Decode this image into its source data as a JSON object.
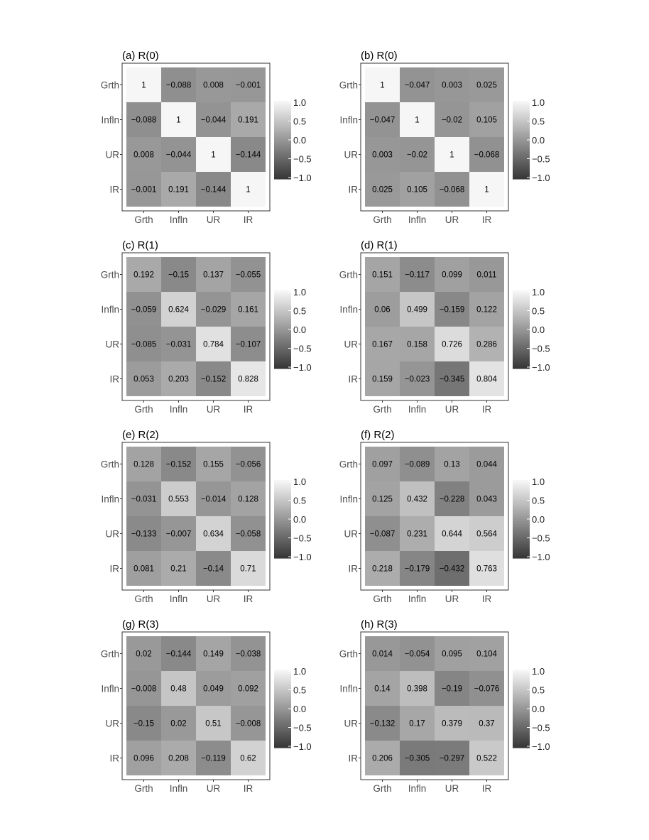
{
  "chart_data": [
    {
      "type": "heatmap",
      "panel_label": "(a) R(0)",
      "x_labels": [
        "Grth",
        "Infln",
        "UR",
        "IR"
      ],
      "y_labels": [
        "Grth",
        "Infln",
        "UR",
        "IR"
      ],
      "values": [
        [
          1,
          -0.088,
          0.008,
          -0.001
        ],
        [
          -0.088,
          1,
          -0.044,
          0.191
        ],
        [
          0.008,
          -0.044,
          1,
          -0.144
        ],
        [
          -0.001,
          0.191,
          -0.144,
          1
        ]
      ],
      "color_range": [
        -1,
        1
      ],
      "legend_ticks": [
        "1.0",
        "0.5",
        "0.0",
        "−0.5",
        "−1.0"
      ]
    },
    {
      "type": "heatmap",
      "panel_label": "(b) R(0)",
      "x_labels": [
        "Grth",
        "Infln",
        "UR",
        "IR"
      ],
      "y_labels": [
        "Grth",
        "Infln",
        "UR",
        "IR"
      ],
      "values": [
        [
          1,
          -0.047,
          0.003,
          0.025
        ],
        [
          -0.047,
          1,
          -0.02,
          0.105
        ],
        [
          0.003,
          -0.02,
          1,
          -0.068
        ],
        [
          0.025,
          0.105,
          -0.068,
          1
        ]
      ],
      "color_range": [
        -1,
        1
      ],
      "legend_ticks": [
        "1.0",
        "0.5",
        "0.0",
        "−0.5",
        "−1.0"
      ]
    },
    {
      "type": "heatmap",
      "panel_label": "(c) R(1)",
      "x_labels": [
        "Grth",
        "Infln",
        "UR",
        "IR"
      ],
      "y_labels": [
        "Grth",
        "Infln",
        "UR",
        "IR"
      ],
      "values": [
        [
          0.192,
          -0.15,
          0.137,
          -0.055
        ],
        [
          -0.059,
          0.624,
          -0.029,
          0.161
        ],
        [
          -0.085,
          -0.031,
          0.784,
          -0.107
        ],
        [
          0.053,
          0.203,
          -0.152,
          0.828
        ]
      ],
      "color_range": [
        -1,
        1
      ],
      "legend_ticks": [
        "1.0",
        "0.5",
        "0.0",
        "−0.5",
        "−1.0"
      ]
    },
    {
      "type": "heatmap",
      "panel_label": "(d) R(1)",
      "x_labels": [
        "Grth",
        "Infln",
        "UR",
        "IR"
      ],
      "y_labels": [
        "Grth",
        "Infln",
        "UR",
        "IR"
      ],
      "values": [
        [
          0.151,
          -0.117,
          0.099,
          0.011
        ],
        [
          0.06,
          0.499,
          -0.159,
          0.122
        ],
        [
          0.167,
          0.158,
          0.726,
          0.286
        ],
        [
          0.159,
          -0.023,
          -0.345,
          0.804
        ]
      ],
      "color_range": [
        -1,
        1
      ],
      "legend_ticks": [
        "1.0",
        "0.5",
        "0.0",
        "−0.5",
        "−1.0"
      ]
    },
    {
      "type": "heatmap",
      "panel_label": "(e) R(2)",
      "x_labels": [
        "Grth",
        "Infln",
        "UR",
        "IR"
      ],
      "y_labels": [
        "Grth",
        "Infln",
        "UR",
        "IR"
      ],
      "values": [
        [
          0.128,
          -0.152,
          0.155,
          -0.056
        ],
        [
          -0.031,
          0.553,
          -0.014,
          0.128
        ],
        [
          -0.133,
          -0.007,
          0.634,
          -0.058
        ],
        [
          0.081,
          0.21,
          -0.14,
          0.71
        ]
      ],
      "color_range": [
        -1,
        1
      ],
      "legend_ticks": [
        "1.0",
        "0.5",
        "0.0",
        "−0.5",
        "−1.0"
      ]
    },
    {
      "type": "heatmap",
      "panel_label": "(f) R(2)",
      "x_labels": [
        "Grth",
        "Infln",
        "UR",
        "IR"
      ],
      "y_labels": [
        "Grth",
        "Infln",
        "UR",
        "IR"
      ],
      "values": [
        [
          0.097,
          -0.089,
          0.13,
          0.044
        ],
        [
          0.125,
          0.432,
          -0.228,
          0.043
        ],
        [
          -0.087,
          0.231,
          0.644,
          0.564
        ],
        [
          0.218,
          -0.179,
          -0.432,
          0.763
        ]
      ],
      "color_range": [
        -1,
        1
      ],
      "legend_ticks": [
        "1.0",
        "0.5",
        "0.0",
        "−0.5",
        "−1.0"
      ]
    },
    {
      "type": "heatmap",
      "panel_label": "(g) R(3)",
      "x_labels": [
        "Grth",
        "Infln",
        "UR",
        "IR"
      ],
      "y_labels": [
        "Grth",
        "Infln",
        "UR",
        "IR"
      ],
      "values": [
        [
          0.02,
          -0.144,
          0.149,
          -0.038
        ],
        [
          -0.008,
          0.48,
          0.049,
          0.092
        ],
        [
          -0.15,
          0.02,
          0.51,
          -0.008
        ],
        [
          0.096,
          0.208,
          -0.119,
          0.62
        ]
      ],
      "color_range": [
        -1,
        1
      ],
      "legend_ticks": [
        "1.0",
        "0.5",
        "0.0",
        "−0.5",
        "−1.0"
      ]
    },
    {
      "type": "heatmap",
      "panel_label": "(h) R(3)",
      "x_labels": [
        "Grth",
        "Infln",
        "UR",
        "IR"
      ],
      "y_labels": [
        "Grth",
        "Infln",
        "UR",
        "IR"
      ],
      "values": [
        [
          0.014,
          -0.054,
          0.095,
          0.104
        ],
        [
          0.14,
          0.398,
          -0.19,
          -0.076
        ],
        [
          -0.132,
          0.17,
          0.379,
          0.37
        ],
        [
          0.206,
          -0.305,
          -0.297,
          0.522
        ]
      ],
      "color_range": [
        -1,
        1
      ],
      "legend_ticks": [
        "1.0",
        "0.5",
        "0.0",
        "−0.5",
        "−1.0"
      ]
    }
  ]
}
